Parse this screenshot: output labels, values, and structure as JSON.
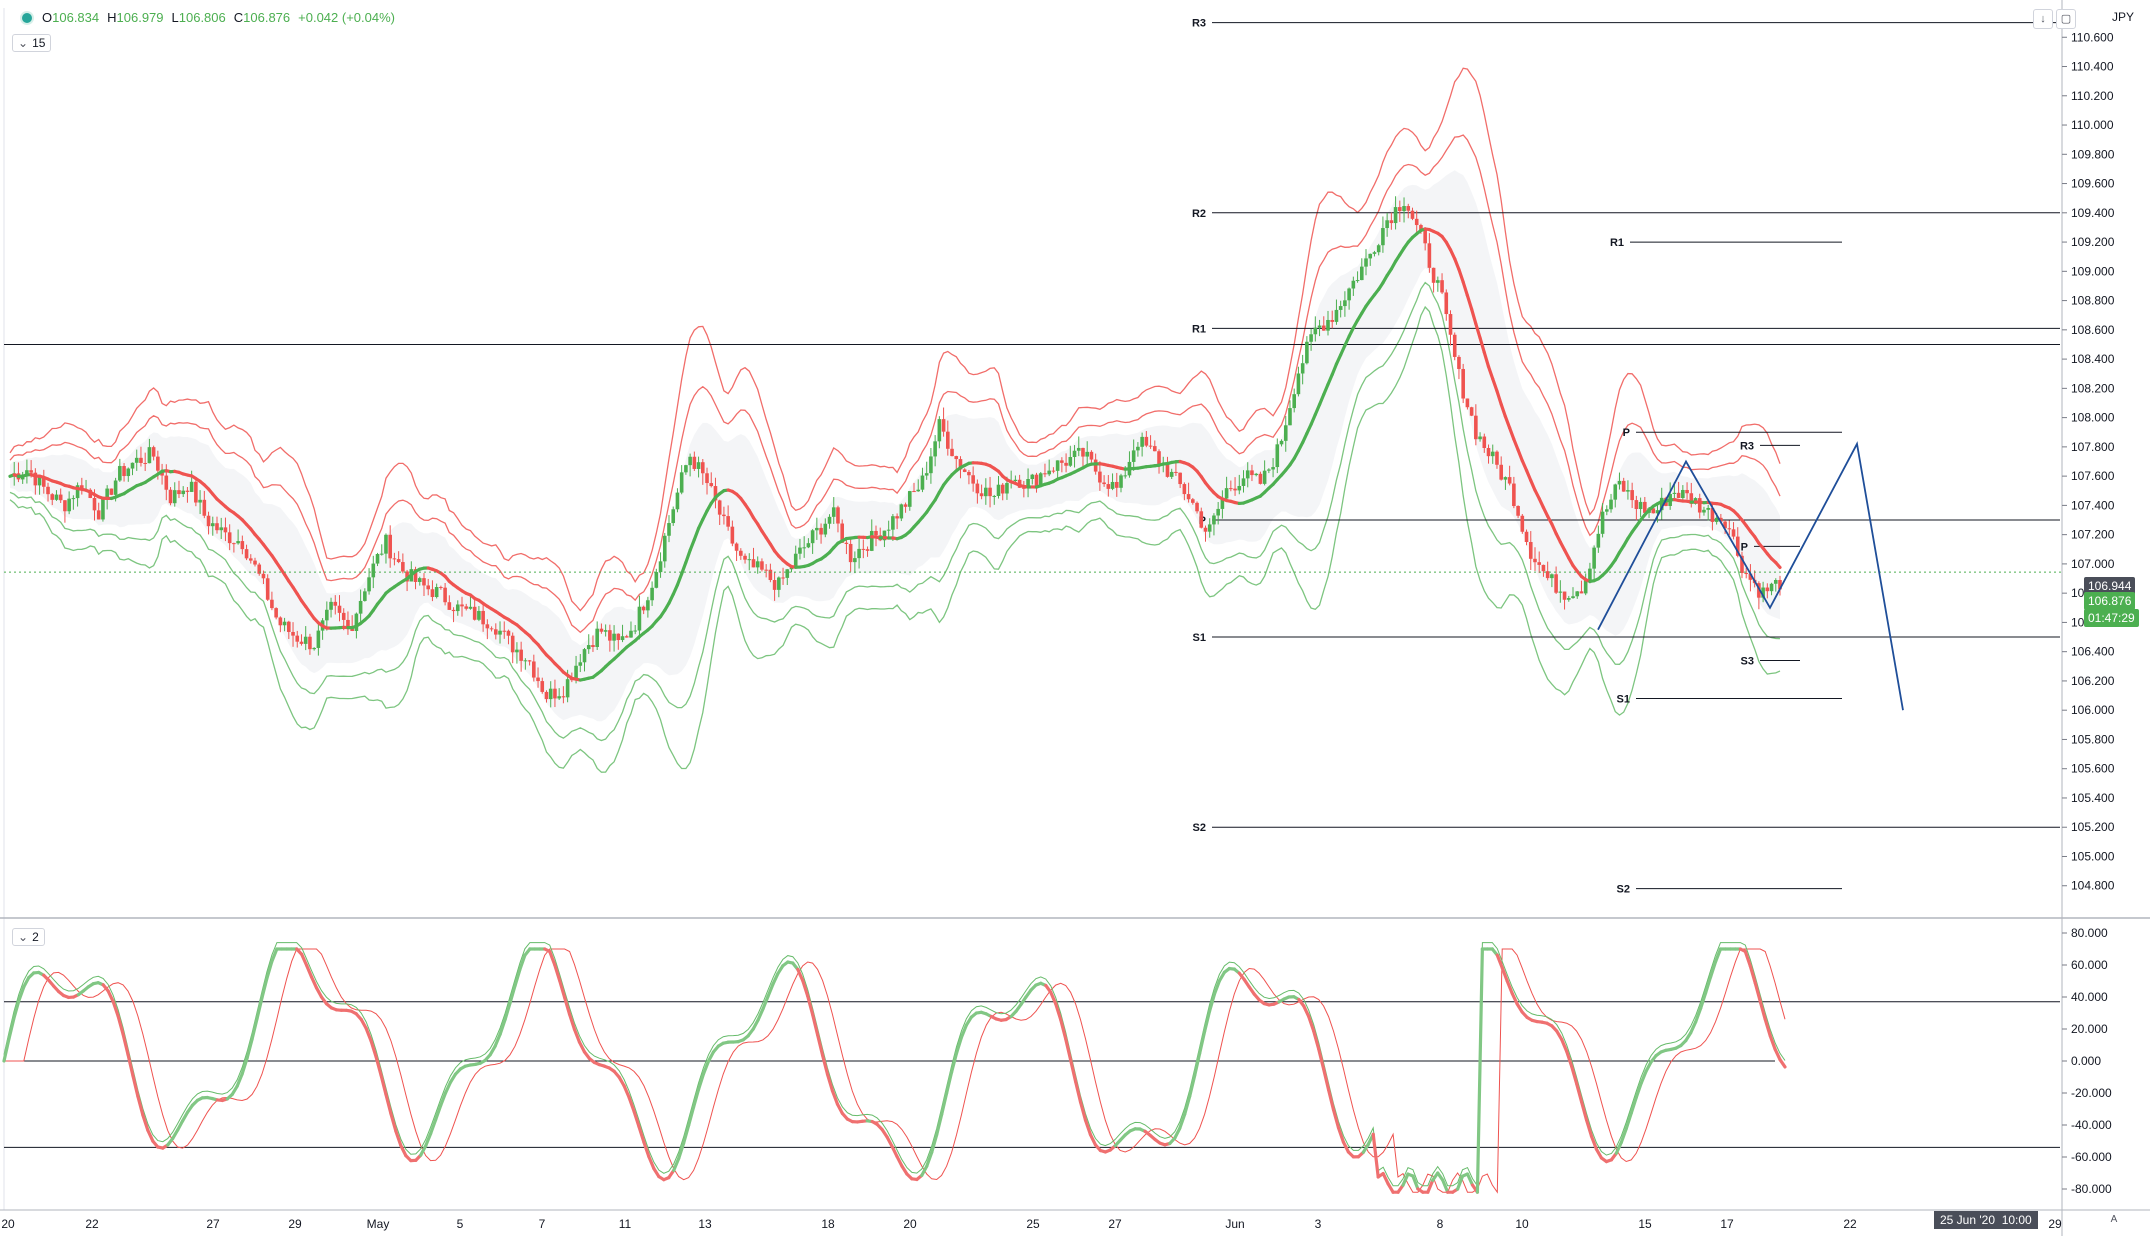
{
  "header": {
    "open_label": "O",
    "open": "106.834",
    "high_label": "H",
    "high": "106.979",
    "low_label": "L",
    "low": "106.806",
    "close_label": "C",
    "close": "106.876",
    "change": "+0.042 (+0.04%)",
    "interval_pill": "15",
    "indicator_pill": "2",
    "currency": "JPY"
  },
  "price_axis": {
    "min": 104.6,
    "max": 110.8,
    "ticks": [
      "110.600",
      "110.400",
      "110.200",
      "110.000",
      "109.800",
      "109.600",
      "109.400",
      "109.200",
      "109.000",
      "108.800",
      "108.600",
      "108.400",
      "108.200",
      "108.000",
      "107.800",
      "107.600",
      "107.400",
      "107.200",
      "107.000",
      "106.800",
      "106.600",
      "106.400",
      "106.200",
      "106.000",
      "105.800",
      "105.600",
      "105.400",
      "105.200",
      "105.000",
      "104.800"
    ],
    "current_price": "106.944",
    "current_price_2": "106.876",
    "countdown": "01:47:29"
  },
  "osc_axis": {
    "min": -90,
    "max": 85,
    "ticks": [
      "80.000",
      "60.000",
      "40.000",
      "20.000",
      "0.000",
      "-20.000",
      "-40.000",
      "-60.000",
      "-80.000"
    ]
  },
  "time_axis": {
    "labels": [
      "20",
      "22",
      "27",
      "29",
      "May",
      "5",
      "7",
      "11",
      "13",
      "18",
      "20",
      "25",
      "27",
      "Jun",
      "3",
      "8",
      "10",
      "15",
      "17",
      "22",
      "29"
    ],
    "highlight": "25 Jun '20",
    "highlight_time": "10:00",
    "corner": "A"
  },
  "chart_data": {
    "type": "candlestick",
    "symbol_currency": "JPY",
    "price_range": [
      104.6,
      110.8
    ],
    "close_path": [
      107.6,
      107.65,
      107.5,
      107.4,
      107.55,
      107.35,
      107.6,
      107.7,
      107.75,
      107.45,
      107.55,
      107.3,
      107.2,
      107.15,
      106.9,
      106.6,
      106.5,
      106.45,
      106.7,
      106.55,
      106.9,
      107.15,
      106.95,
      106.85,
      106.8,
      106.7,
      106.65,
      106.6,
      106.45,
      106.35,
      106.1,
      106.15,
      106.4,
      106.55,
      106.45,
      106.6,
      106.9,
      107.35,
      107.75,
      107.55,
      107.25,
      107.0,
      106.95,
      106.85,
      107.05,
      107.2,
      107.35,
      107.05,
      107.15,
      107.25,
      107.4,
      107.55,
      107.95,
      107.7,
      107.55,
      107.45,
      107.6,
      107.55,
      107.65,
      107.7,
      107.75,
      107.6,
      107.5,
      107.85,
      107.75,
      107.6,
      107.45,
      107.2,
      107.5,
      107.6,
      107.55,
      107.8,
      108.3,
      108.6,
      108.7,
      108.9,
      109.1,
      109.35,
      109.5,
      109.2,
      108.85,
      108.3,
      107.9,
      107.7,
      107.5,
      107.1,
      106.9,
      106.8,
      106.85,
      107.3,
      107.55,
      107.4,
      107.35,
      107.5,
      107.45,
      107.35,
      107.3,
      106.95,
      106.8,
      106.876
    ],
    "pivot_levels": [
      {
        "label": "R3",
        "value": 110.7
      },
      {
        "label": "R2",
        "value": 109.4
      },
      {
        "label": "R1",
        "value": 108.61
      },
      {
        "label": "P",
        "value": 107.3
      },
      {
        "label": "S1",
        "value": 106.5
      },
      {
        "label": "S2",
        "value": 105.2
      },
      {
        "label": "R1",
        "value": 109.2
      },
      {
        "label": "P",
        "value": 107.9
      },
      {
        "label": "R3",
        "value": 107.81
      },
      {
        "label": "P",
        "value": 107.12
      },
      {
        "label": "S3",
        "value": 106.34
      },
      {
        "label": "S1",
        "value": 106.08
      },
      {
        "label": "S2",
        "value": 104.78
      }
    ],
    "horizontal_line": 108.5,
    "pattern_points": [
      [
        0,
        106.55
      ],
      [
        1,
        107.7
      ],
      [
        2,
        106.7
      ],
      [
        3,
        107.82
      ],
      [
        4,
        106.0
      ]
    ],
    "oscillator": {
      "type": "line",
      "levels": [
        37,
        0,
        -54
      ],
      "range": [
        -90,
        85
      ]
    },
    "colors": {
      "up": "#4caf50",
      "down": "#ef5350",
      "band_up": "#66bb6a",
      "band_down": "#ef5350",
      "pattern": "#1f4e99"
    }
  }
}
